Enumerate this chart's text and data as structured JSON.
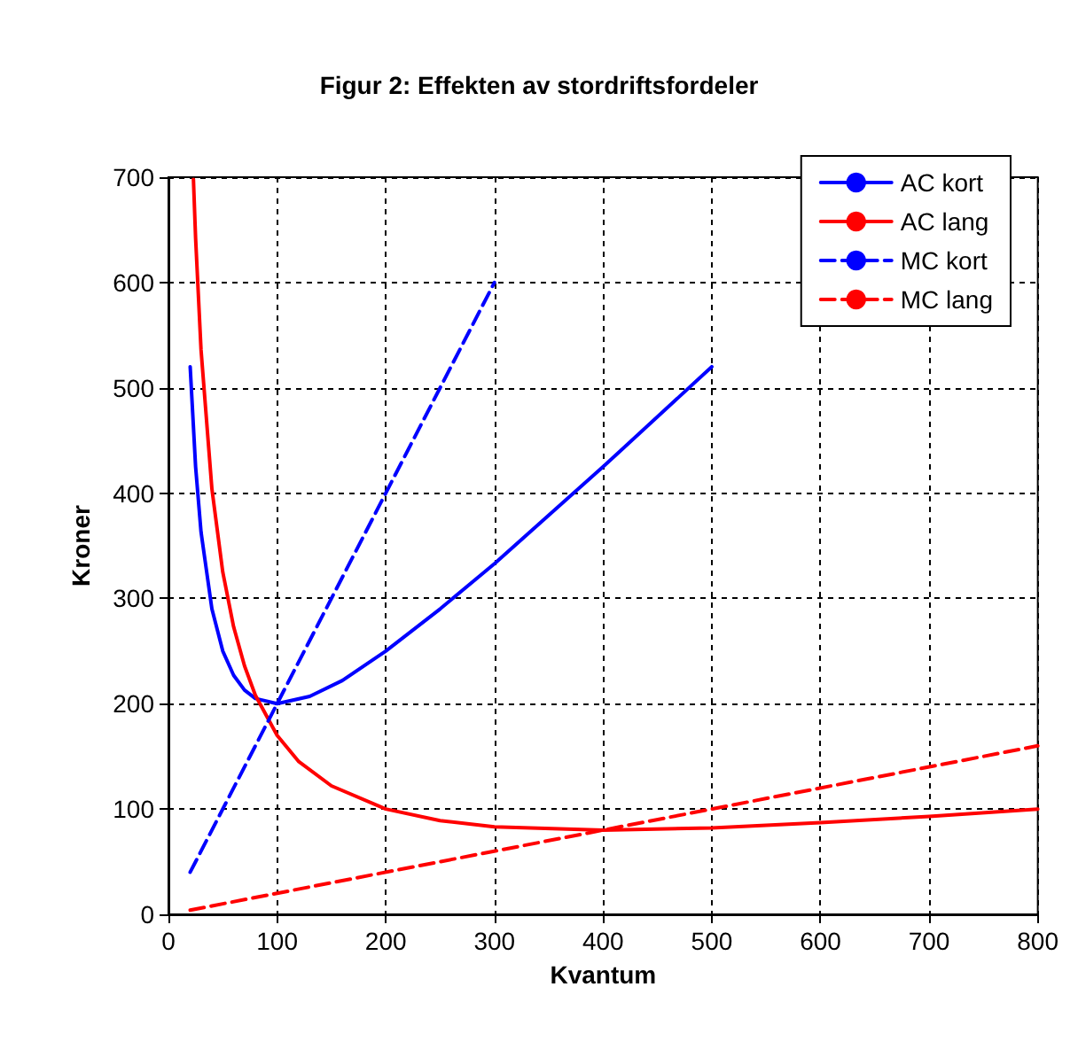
{
  "chart_data": {
    "type": "line",
    "title": "Figur 2: Effekten av stordriftsfordeler",
    "xlabel": "Kvantum",
    "ylabel": "Kroner",
    "xlim": [
      0,
      800
    ],
    "xticks": [
      0,
      100,
      200,
      300,
      400,
      500,
      600,
      700,
      800
    ],
    "ylim": [
      0,
      700
    ],
    "yticks": [
      0,
      100,
      200,
      300,
      400,
      500,
      600,
      700
    ],
    "grid": true,
    "legend": "top right",
    "marker": "none",
    "series": [
      {
        "name": "AC kort",
        "color": "#0000ff",
        "line_style": "solid",
        "x": [
          20,
          25,
          30,
          40,
          50,
          60,
          70,
          80,
          100,
          130,
          160,
          200,
          250,
          300,
          400,
          500
        ],
        "values": [
          520,
          425,
          363,
          290,
          250,
          227,
          213,
          205,
          200,
          207,
          222,
          250,
          290,
          333,
          425,
          520
        ]
      },
      {
        "name": "AC lang",
        "color": "#ff0000",
        "line_style": "solid",
        "x": [
          23,
          25,
          30,
          40,
          50,
          60,
          70,
          80,
          100,
          120,
          150,
          200,
          250,
          300,
          400,
          500,
          600,
          700,
          800
        ],
        "values": [
          698,
          642,
          536,
          404,
          325,
          273,
          236,
          208,
          170,
          145,
          122,
          100,
          89,
          83,
          80,
          82,
          87,
          93,
          100
        ]
      },
      {
        "name": "MC kort",
        "color": "#0000ff",
        "line_style": "dashed",
        "x": [
          20,
          300
        ],
        "values": [
          40,
          600
        ]
      },
      {
        "name": "MC lang",
        "color": "#ff0000",
        "line_style": "dashed",
        "x": [
          20,
          800
        ],
        "values": [
          4,
          160
        ]
      }
    ]
  }
}
